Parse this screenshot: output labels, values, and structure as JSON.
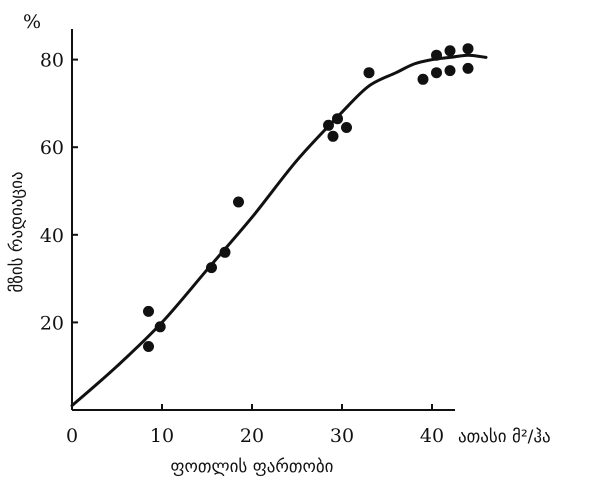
{
  "chart_data": {
    "type": "scatter",
    "y_unit": "%",
    "xlabel": "ფოთლის ფართობი",
    "ylabel": "მზის რადიაცია",
    "x_unit_label": "ათასი მ²/ჰა",
    "xlim": [
      0,
      43
    ],
    "ylim": [
      0,
      87
    ],
    "x_ticks": [
      0,
      10,
      20,
      30,
      40
    ],
    "y_ticks": [
      20,
      40,
      60,
      80
    ],
    "grid": false,
    "colors": {
      "ink": "#111111"
    },
    "points": [
      {
        "x": 8.5,
        "y": 22.5
      },
      {
        "x": 8.5,
        "y": 14.5
      },
      {
        "x": 9.8,
        "y": 19
      },
      {
        "x": 15.5,
        "y": 32.5
      },
      {
        "x": 17,
        "y": 36
      },
      {
        "x": 18.5,
        "y": 47.5
      },
      {
        "x": 28.5,
        "y": 65
      },
      {
        "x": 29,
        "y": 62.5
      },
      {
        "x": 29.5,
        "y": 66.5
      },
      {
        "x": 30.5,
        "y": 64.5
      },
      {
        "x": 33,
        "y": 77
      },
      {
        "x": 39,
        "y": 75.5
      },
      {
        "x": 40.5,
        "y": 81
      },
      {
        "x": 40.5,
        "y": 77
      },
      {
        "x": 42,
        "y": 82
      },
      {
        "x": 42,
        "y": 77.5
      },
      {
        "x": 44,
        "y": 82.5
      },
      {
        "x": 44,
        "y": 78
      }
    ],
    "trend_line": {
      "x": [
        0,
        5,
        10,
        15,
        20,
        25,
        30,
        33,
        36,
        38,
        40,
        42,
        44,
        46
      ],
      "y": [
        1,
        10,
        20,
        32,
        44,
        57,
        68,
        74,
        77,
        79,
        80,
        80.5,
        81,
        80.5
      ]
    }
  }
}
